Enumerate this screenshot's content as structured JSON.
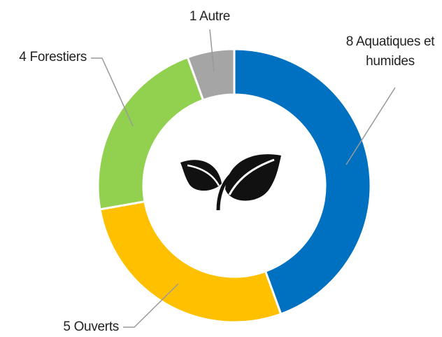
{
  "chart_data": {
    "type": "donut",
    "categories": [
      "Aquatiques et humides",
      "Ouverts",
      "Forestiers",
      "Autre"
    ],
    "values": [
      8,
      5,
      4,
      1
    ],
    "colors": [
      "#0070c0",
      "#ffc000",
      "#92d050",
      "#a5a5a5"
    ]
  }
}
